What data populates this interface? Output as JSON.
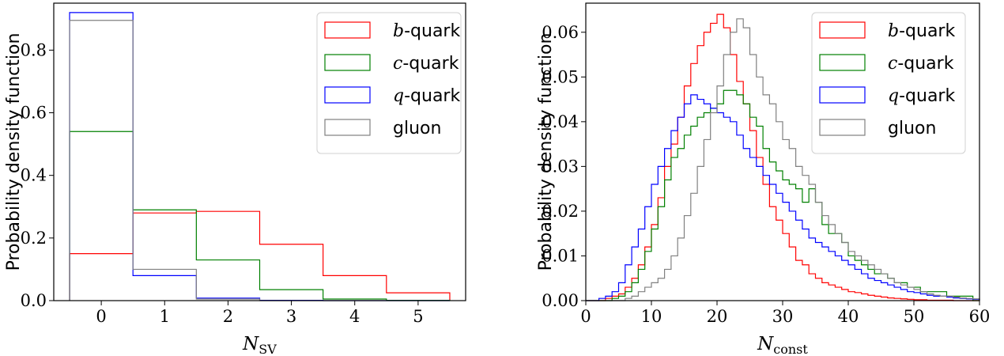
{
  "chart_data": [
    {
      "type": "histogram",
      "xlabel": "N_SV",
      "xlabel_main": "N",
      "xlabel_sub": "SV",
      "ylabel": "Probability density function",
      "xlim": [
        -0.75,
        5.75
      ],
      "ylim": [
        0,
        0.95
      ],
      "xticks": [
        0,
        1,
        2,
        3,
        4,
        5
      ],
      "yticks": [
        0.0,
        0.2,
        0.4,
        0.6,
        0.8
      ],
      "ytick_labels": [
        "0.0",
        "0.2",
        "0.4",
        "0.6",
        "0.8"
      ],
      "legend_position": "top-right",
      "bin_edges": [
        -0.5,
        0.5,
        1.5,
        2.5,
        3.5,
        4.5,
        5.5
      ],
      "series": [
        {
          "name": "b-quark",
          "name_ital": "b",
          "name_rest": "-quark",
          "color": "#ff0000",
          "values": [
            0.15,
            0.28,
            0.285,
            0.18,
            0.08,
            0.025
          ]
        },
        {
          "name": "c-quark",
          "name_ital": "c",
          "name_rest": "-quark",
          "color": "#008000",
          "values": [
            0.54,
            0.29,
            0.13,
            0.035,
            0.005,
            0.001
          ]
        },
        {
          "name": "q-quark",
          "name_ital": "q",
          "name_rest": "-quark",
          "color": "#0000ff",
          "values": [
            0.92,
            0.08,
            0.008,
            0.001,
            0.0,
            0.0
          ]
        },
        {
          "name": "gluon",
          "name_ital": "",
          "name_rest": "gluon",
          "color": "#808080",
          "values": [
            0.895,
            0.1,
            0.005,
            0.0,
            0.0,
            0.0
          ]
        }
      ]
    },
    {
      "type": "histogram",
      "xlabel": "N_const",
      "xlabel_main": "N",
      "xlabel_sub": "const",
      "ylabel": "Probability density function",
      "xlim": [
        0,
        60
      ],
      "ylim": [
        0,
        0.0665
      ],
      "xticks": [
        0,
        10,
        20,
        30,
        40,
        50,
        60
      ],
      "yticks": [
        0.0,
        0.01,
        0.02,
        0.03,
        0.04,
        0.05,
        0.06
      ],
      "ytick_labels": [
        "0.00",
        "0.01",
        "0.02",
        "0.03",
        "0.04",
        "0.05",
        "0.06"
      ],
      "legend_position": "top-right",
      "bin_start": 0,
      "bin_width": 1,
      "series": [
        {
          "name": "b-quark",
          "name_ital": "b",
          "name_rest": "-quark",
          "color": "#ff0000",
          "values": [
            0,
            0,
            0,
            0.0005,
            0.001,
            0.0015,
            0.003,
            0.005,
            0.008,
            0.012,
            0.017,
            0.023,
            0.03,
            0.035,
            0.041,
            0.048,
            0.053,
            0.057,
            0.06,
            0.062,
            0.064,
            0.061,
            0.055,
            0.049,
            0.044,
            0.038,
            0.032,
            0.026,
            0.021,
            0.018,
            0.015,
            0.012,
            0.009,
            0.008,
            0.006,
            0.005,
            0.004,
            0.0035,
            0.003,
            0.0025,
            0.002,
            0.0018,
            0.0015,
            0.0012,
            0.001,
            0.0008,
            0.0006,
            0.0005,
            0.0004,
            0.0003,
            0.0002,
            0.0002,
            0.0001,
            0.0001,
            0.0001,
            0.0001,
            0,
            0,
            0,
            0
          ]
        },
        {
          "name": "c-quark",
          "name_ital": "c",
          "name_rest": "-quark",
          "color": "#008000",
          "values": [
            0,
            0,
            0,
            0,
            0.0005,
            0.001,
            0.002,
            0.004,
            0.007,
            0.011,
            0.016,
            0.021,
            0.027,
            0.032,
            0.034,
            0.037,
            0.039,
            0.041,
            0.042,
            0.043,
            0.044,
            0.047,
            0.047,
            0.046,
            0.044,
            0.041,
            0.039,
            0.034,
            0.031,
            0.029,
            0.027,
            0.026,
            0.025,
            0.022,
            0.025,
            0.022,
            0.017,
            0.015,
            0.015,
            0.013,
            0.01,
            0.009,
            0.008,
            0.007,
            0.006,
            0.006,
            0.005,
            0.004,
            0.004,
            0.003,
            0.003,
            0.002,
            0.002,
            0.002,
            0.002,
            0.001,
            0.001,
            0.001,
            0.001,
            0
          ]
        },
        {
          "name": "q-quark",
          "name_ital": "q",
          "name_rest": "-quark",
          "color": "#0000ff",
          "values": [
            0,
            0,
            0.0005,
            0.001,
            0.002,
            0.004,
            0.008,
            0.012,
            0.016,
            0.021,
            0.026,
            0.03,
            0.034,
            0.038,
            0.041,
            0.044,
            0.046,
            0.045,
            0.044,
            0.043,
            0.042,
            0.041,
            0.04,
            0.037,
            0.034,
            0.032,
            0.03,
            0.028,
            0.026,
            0.024,
            0.022,
            0.02,
            0.018,
            0.016,
            0.014,
            0.013,
            0.012,
            0.011,
            0.01,
            0.009,
            0.008,
            0.007,
            0.006,
            0.005,
            0.0045,
            0.004,
            0.0035,
            0.003,
            0.0025,
            0.002,
            0.0018,
            0.0015,
            0.0012,
            0.001,
            0.001,
            0.0008,
            0.0006,
            0.0005,
            0.0004,
            0.0003
          ]
        },
        {
          "name": "gluon",
          "name_ital": "",
          "name_rest": "gluon",
          "color": "#808080",
          "values": [
            0,
            0,
            0,
            0,
            0,
            0,
            0.0005,
            0.001,
            0.002,
            0.003,
            0.004,
            0.005,
            0.007,
            0.01,
            0.014,
            0.019,
            0.024,
            0.03,
            0.036,
            0.042,
            0.048,
            0.055,
            0.06,
            0.063,
            0.061,
            0.055,
            0.05,
            0.046,
            0.044,
            0.04,
            0.036,
            0.034,
            0.03,
            0.028,
            0.026,
            0.022,
            0.019,
            0.017,
            0.015,
            0.013,
            0.011,
            0.01,
            0.009,
            0.008,
            0.007,
            0.006,
            0.005,
            0.004,
            0.0035,
            0.003,
            0.0025,
            0.002,
            0.0015,
            0.0012,
            0.001,
            0.001,
            0.0008,
            0.0006,
            0.0005,
            0.0004
          ]
        }
      ]
    }
  ]
}
